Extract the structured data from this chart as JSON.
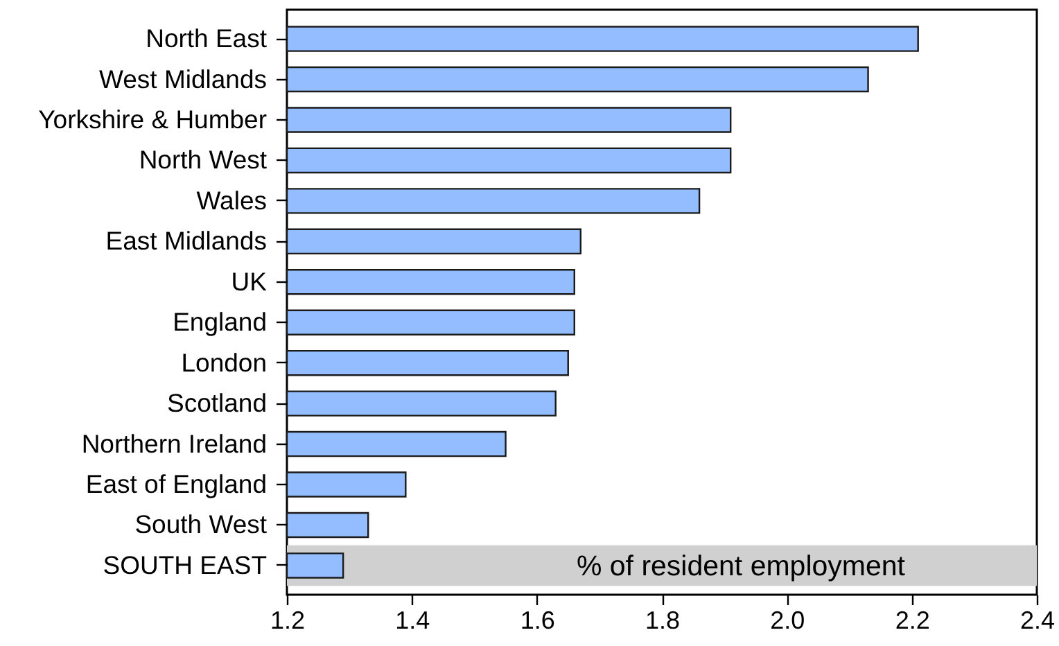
{
  "chart_data": {
    "type": "bar",
    "orientation": "horizontal",
    "categories": [
      "North East",
      "West Midlands",
      "Yorkshire & Humber",
      "North West",
      "Wales",
      "East Midlands",
      "UK",
      "England",
      "London",
      "Scotland",
      "Northern Ireland",
      "East of England",
      "South West",
      "SOUTH EAST"
    ],
    "values": [
      2.21,
      2.13,
      1.91,
      1.91,
      1.86,
      1.67,
      1.66,
      1.66,
      1.65,
      1.63,
      1.55,
      1.39,
      1.33,
      1.29
    ],
    "color": "#94bdff",
    "xlim": [
      1.2,
      2.4
    ],
    "xticks": [
      1.2,
      1.4,
      1.6,
      1.8,
      {
        "value": 2,
        "label": "2.0"
      },
      2.2,
      2.4
    ],
    "bands": [
      {
        "axis": "y",
        "from": "SOUTH EAST",
        "to": "SOUTH EAST",
        "label": "% of resident employment",
        "color": "#d0d0d0"
      }
    ]
  }
}
